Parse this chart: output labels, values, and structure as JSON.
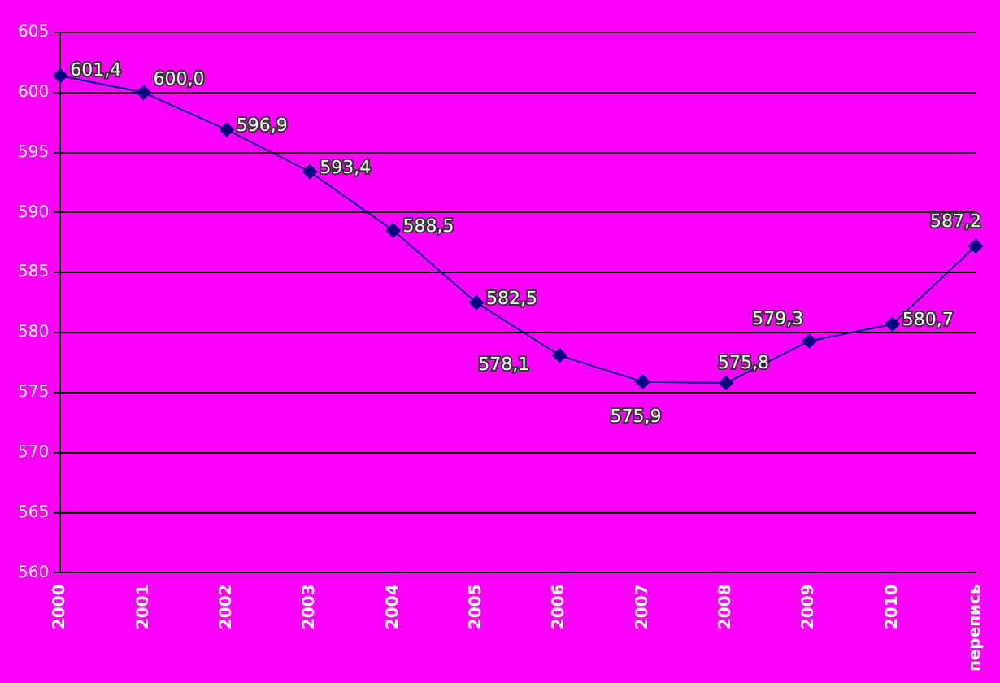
{
  "chart_data": {
    "type": "line",
    "categories": [
      "2000",
      "2001",
      "2002",
      "2003",
      "2004",
      "2005",
      "2006",
      "2007",
      "2008",
      "2009",
      "2010",
      "перепись"
    ],
    "series": [
      {
        "color": "#000080",
        "values": [
          601.4,
          600.0,
          596.9,
          593.4,
          588.5,
          582.5,
          578.1,
          575.9,
          575.8,
          579.3,
          580.7,
          587.2
        ],
        "value_labels": [
          "601,4",
          "600,0",
          "596,9",
          "593,4",
          "588,5",
          "582,5",
          "578,1",
          "575,9",
          "575,8",
          "579,3",
          "580,7",
          "587,2"
        ]
      }
    ],
    "ylim": [
      560,
      605
    ],
    "yticks": [
      560,
      565,
      570,
      575,
      580,
      585,
      590,
      595,
      600,
      605
    ],
    "grid": "y",
    "legend": false,
    "marker": "diamond",
    "line_style": "solid"
  }
}
